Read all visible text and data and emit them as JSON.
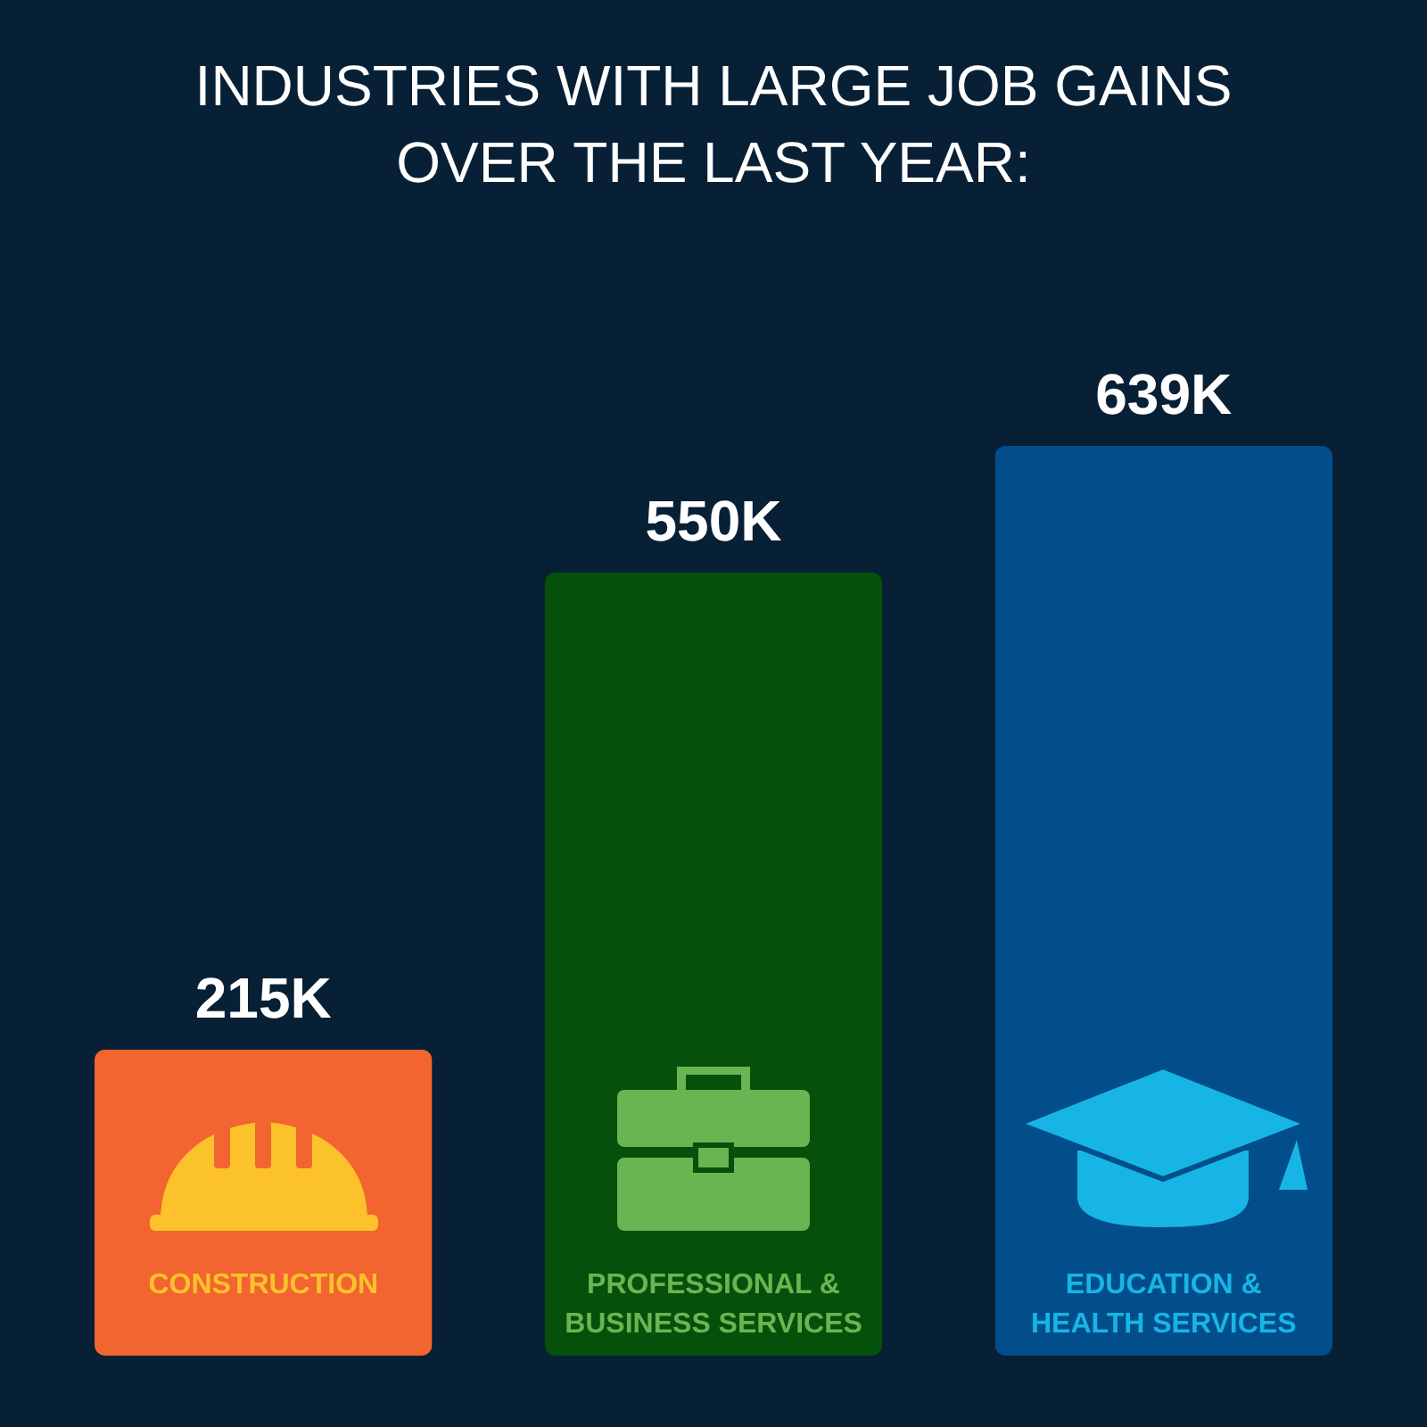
{
  "chart_data": {
    "type": "bar",
    "title": "INDUSTRIES WITH LARGE JOB GAINS OVER THE LAST YEAR:",
    "categories": [
      "CONSTRUCTION",
      "PROFESSIONAL & BUSINESS SERVICES",
      "EDUCATION & HEALTH SERVICES"
    ],
    "values": [
      215,
      550,
      639
    ],
    "colors": [
      "#f26430",
      "#05500a",
      "#024e8a"
    ],
    "value_labels": [
      "215K",
      "550K",
      "639K"
    ]
  }
}
